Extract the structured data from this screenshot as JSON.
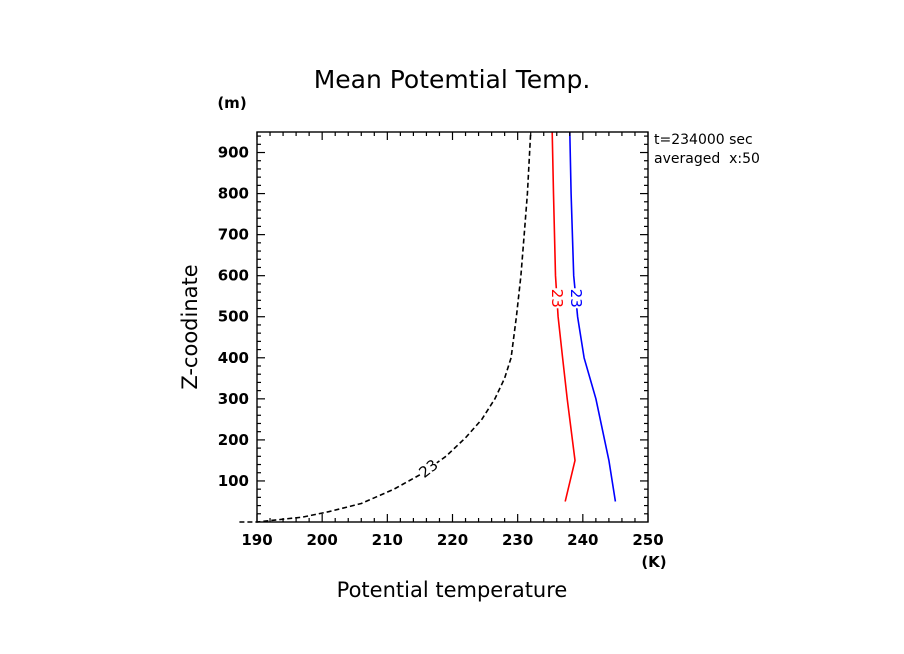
{
  "chart_data": {
    "type": "line",
    "title": "Mean Potemtial Temp.",
    "xlabel": "Potential temperature",
    "ylabel": "Z-coodinate",
    "x_unit": "(K)",
    "y_unit": "(m)",
    "xlim": [
      190,
      250
    ],
    "ylim": [
      0,
      950
    ],
    "x_ticks": [
      190,
      200,
      210,
      220,
      230,
      240,
      250
    ],
    "y_ticks": [
      100,
      200,
      300,
      400,
      500,
      600,
      700,
      800,
      900
    ],
    "grid": false,
    "annotations": [
      "t=234000 sec",
      "averaged  x:50"
    ],
    "series": [
      {
        "color": "#000000",
        "style": "dashed",
        "label": "23",
        "x": [
          187.3,
          190,
          193,
          197,
          201,
          206,
          211,
          215,
          219,
          222,
          224.5,
          226.5,
          228,
          229,
          229.8,
          230.5,
          231,
          231.5,
          232
        ],
        "y": [
          0,
          0,
          5,
          12,
          25,
          45,
          80,
          115,
          160,
          205,
          250,
          300,
          350,
          400,
          500,
          600,
          700,
          800,
          950
        ]
      },
      {
        "color": "#ff0000",
        "style": "solid",
        "label": "23",
        "x": [
          237.3,
          238.8,
          237.6,
          236.9,
          236.2,
          235.8,
          235.5,
          235.3
        ],
        "y": [
          50,
          150,
          300,
          400,
          500,
          600,
          800,
          950
        ]
      },
      {
        "color": "#0000ff",
        "style": "solid",
        "label": "23",
        "x": [
          245,
          244,
          242,
          240.2,
          239.2,
          238.6,
          238.2,
          238
        ],
        "y": [
          50,
          150,
          300,
          400,
          500,
          600,
          800,
          950
        ]
      }
    ]
  }
}
